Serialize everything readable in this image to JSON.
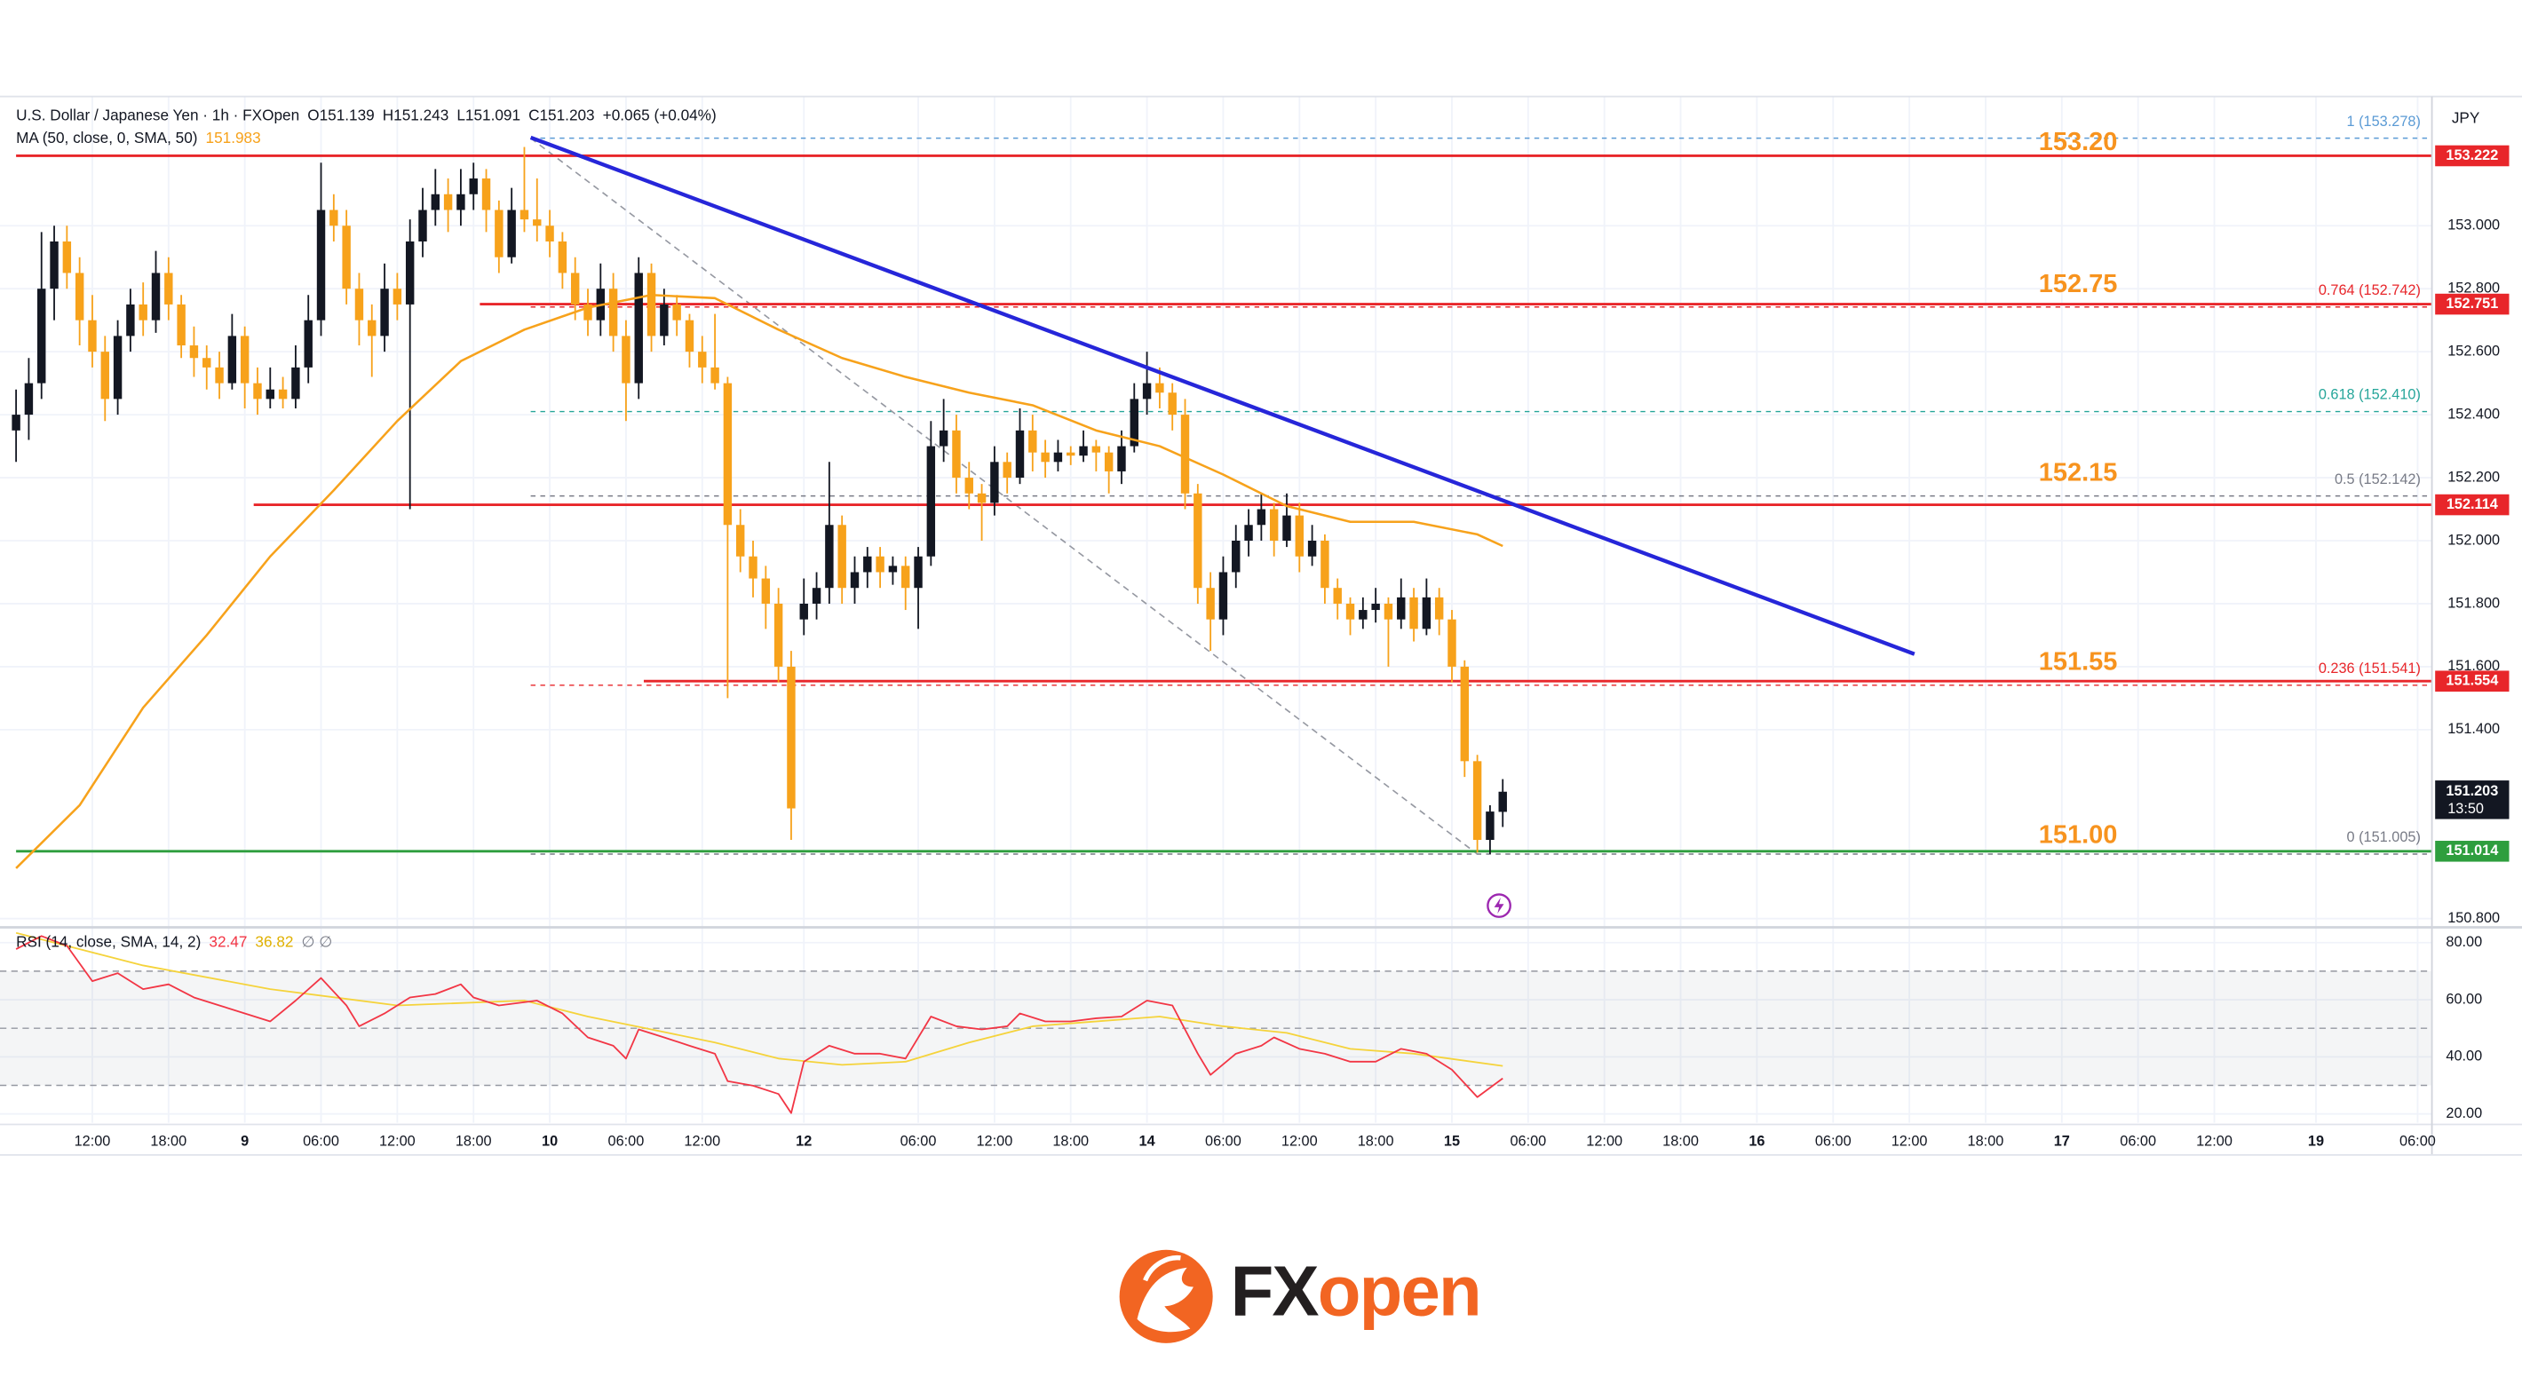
{
  "chart_data": {
    "type": "candlestick",
    "title": "U.S. Dollar / Japanese Yen · 1h · FXOpen",
    "ohlc_text": [
      "O151.139",
      "H151.243",
      "L151.091",
      "C151.203",
      "+0.065 (+0.04%)"
    ],
    "currency": "JPY",
    "up_color": "#131722",
    "down_color": "#f7a21b",
    "candles": [
      [
        152.35,
        152.48,
        152.25,
        152.4
      ],
      [
        152.4,
        152.58,
        152.32,
        152.5
      ],
      [
        152.5,
        152.98,
        152.45,
        152.8
      ],
      [
        152.8,
        153.0,
        152.7,
        152.95
      ],
      [
        152.95,
        153.0,
        152.8,
        152.85
      ],
      [
        152.85,
        152.9,
        152.62,
        152.7
      ],
      [
        152.7,
        152.78,
        152.55,
        152.6
      ],
      [
        152.6,
        152.65,
        152.38,
        152.45
      ],
      [
        152.45,
        152.7,
        152.4,
        152.65
      ],
      [
        152.65,
        152.8,
        152.6,
        152.75
      ],
      [
        152.75,
        152.82,
        152.65,
        152.7
      ],
      [
        152.7,
        152.92,
        152.66,
        152.85
      ],
      [
        152.85,
        152.9,
        152.7,
        152.75
      ],
      [
        152.75,
        152.78,
        152.58,
        152.62
      ],
      [
        152.62,
        152.68,
        152.52,
        152.58
      ],
      [
        152.58,
        152.62,
        152.48,
        152.55
      ],
      [
        152.55,
        152.6,
        152.45,
        152.5
      ],
      [
        152.5,
        152.72,
        152.48,
        152.65
      ],
      [
        152.65,
        152.68,
        152.42,
        152.5
      ],
      [
        152.5,
        152.55,
        152.4,
        152.45
      ],
      [
        152.45,
        152.55,
        152.42,
        152.48
      ],
      [
        152.48,
        152.52,
        152.42,
        152.45
      ],
      [
        152.45,
        152.62,
        152.42,
        152.55
      ],
      [
        152.55,
        152.78,
        152.5,
        152.7
      ],
      [
        152.7,
        153.2,
        152.65,
        153.05
      ],
      [
        153.05,
        153.1,
        152.95,
        153.0
      ],
      [
        153.0,
        153.05,
        152.75,
        152.8
      ],
      [
        152.8,
        152.85,
        152.62,
        152.7
      ],
      [
        152.7,
        152.75,
        152.52,
        152.65
      ],
      [
        152.65,
        152.88,
        152.6,
        152.8
      ],
      [
        152.8,
        152.85,
        152.7,
        152.75
      ],
      [
        152.75,
        153.02,
        152.1,
        152.95
      ],
      [
        152.95,
        153.12,
        152.9,
        153.05
      ],
      [
        153.05,
        153.18,
        153.0,
        153.1
      ],
      [
        153.1,
        153.15,
        152.98,
        153.05
      ],
      [
        153.05,
        153.18,
        153.0,
        153.1
      ],
      [
        153.1,
        153.2,
        153.05,
        153.15
      ],
      [
        153.15,
        153.18,
        152.98,
        153.05
      ],
      [
        153.05,
        153.08,
        152.85,
        152.9
      ],
      [
        152.9,
        153.12,
        152.88,
        153.05
      ],
      [
        153.05,
        153.25,
        152.98,
        153.02
      ],
      [
        153.02,
        153.15,
        152.95,
        153.0
      ],
      [
        153.0,
        153.05,
        152.9,
        152.95
      ],
      [
        152.95,
        152.98,
        152.8,
        152.85
      ],
      [
        152.85,
        152.9,
        152.7,
        152.75
      ],
      [
        152.75,
        152.8,
        152.65,
        152.7
      ],
      [
        152.7,
        152.88,
        152.65,
        152.8
      ],
      [
        152.8,
        152.85,
        152.6,
        152.65
      ],
      [
        152.65,
        152.7,
        152.38,
        152.5
      ],
      [
        152.5,
        152.9,
        152.45,
        152.85
      ],
      [
        152.85,
        152.88,
        152.6,
        152.65
      ],
      [
        152.65,
        152.8,
        152.62,
        152.75
      ],
      [
        152.75,
        152.78,
        152.65,
        152.7
      ],
      [
        152.7,
        152.72,
        152.55,
        152.6
      ],
      [
        152.6,
        152.65,
        152.5,
        152.55
      ],
      [
        152.55,
        152.72,
        152.48,
        152.5
      ],
      [
        152.5,
        152.52,
        151.5,
        152.05
      ],
      [
        152.05,
        152.1,
        151.9,
        151.95
      ],
      [
        151.95,
        152.0,
        151.82,
        151.88
      ],
      [
        151.88,
        151.92,
        151.72,
        151.8
      ],
      [
        151.8,
        151.85,
        151.55,
        151.6
      ],
      [
        151.6,
        151.65,
        151.05,
        151.15
      ],
      [
        151.75,
        151.88,
        151.7,
        151.8
      ],
      [
        151.8,
        151.9,
        151.75,
        151.85
      ],
      [
        151.85,
        152.25,
        151.8,
        152.05
      ],
      [
        152.05,
        152.08,
        151.8,
        151.85
      ],
      [
        151.85,
        151.95,
        151.8,
        151.9
      ],
      [
        151.9,
        151.98,
        151.85,
        151.95
      ],
      [
        151.95,
        151.98,
        151.85,
        151.9
      ],
      [
        151.9,
        151.95,
        151.86,
        151.92
      ],
      [
        151.92,
        151.95,
        151.78,
        151.85
      ],
      [
        151.85,
        151.98,
        151.72,
        151.95
      ],
      [
        151.95,
        152.38,
        151.92,
        152.3
      ],
      [
        152.3,
        152.45,
        152.25,
        152.35
      ],
      [
        152.35,
        152.4,
        152.15,
        152.2
      ],
      [
        152.2,
        152.25,
        152.1,
        152.15
      ],
      [
        152.15,
        152.18,
        152.0,
        152.12
      ],
      [
        152.12,
        152.3,
        152.08,
        152.25
      ],
      [
        152.25,
        152.28,
        152.15,
        152.2
      ],
      [
        152.2,
        152.42,
        152.18,
        152.35
      ],
      [
        152.35,
        152.4,
        152.22,
        152.28
      ],
      [
        152.28,
        152.32,
        152.2,
        152.25
      ],
      [
        152.25,
        152.32,
        152.22,
        152.28
      ],
      [
        152.28,
        152.3,
        152.24,
        152.27
      ],
      [
        152.27,
        152.35,
        152.25,
        152.3
      ],
      [
        152.3,
        152.32,
        152.22,
        152.28
      ],
      [
        152.28,
        152.3,
        152.15,
        152.22
      ],
      [
        152.22,
        152.35,
        152.18,
        152.3
      ],
      [
        152.3,
        152.5,
        152.28,
        152.45
      ],
      [
        152.45,
        152.6,
        152.4,
        152.5
      ],
      [
        152.5,
        152.55,
        152.42,
        152.47
      ],
      [
        152.47,
        152.5,
        152.35,
        152.4
      ],
      [
        152.4,
        152.45,
        152.1,
        152.15
      ],
      [
        152.15,
        152.18,
        151.8,
        151.85
      ],
      [
        151.85,
        151.9,
        151.65,
        151.75
      ],
      [
        151.75,
        151.95,
        151.7,
        151.9
      ],
      [
        151.9,
        152.05,
        151.85,
        152.0
      ],
      [
        152.0,
        152.1,
        151.95,
        152.05
      ],
      [
        152.05,
        152.15,
        152.0,
        152.1
      ],
      [
        152.1,
        152.12,
        151.95,
        152.0
      ],
      [
        152.0,
        152.15,
        151.98,
        152.08
      ],
      [
        152.08,
        152.12,
        151.9,
        151.95
      ],
      [
        151.95,
        152.05,
        151.92,
        152.0
      ],
      [
        152.0,
        152.02,
        151.8,
        151.85
      ],
      [
        151.85,
        151.88,
        151.75,
        151.8
      ],
      [
        151.8,
        151.82,
        151.7,
        151.75
      ],
      [
        151.75,
        151.82,
        151.72,
        151.78
      ],
      [
        151.78,
        151.85,
        151.74,
        151.8
      ],
      [
        151.8,
        151.82,
        151.6,
        151.75
      ],
      [
        151.75,
        151.88,
        151.72,
        151.82
      ],
      [
        151.82,
        151.85,
        151.68,
        151.72
      ],
      [
        151.72,
        151.88,
        151.7,
        151.82
      ],
      [
        151.82,
        151.85,
        151.7,
        151.75
      ],
      [
        151.75,
        151.78,
        151.55,
        151.6
      ],
      [
        151.6,
        151.62,
        151.25,
        151.3
      ],
      [
        151.3,
        151.32,
        151.01,
        151.05
      ],
      [
        151.05,
        151.16,
        151.005,
        151.14
      ],
      [
        151.139,
        151.243,
        151.091,
        151.203
      ]
    ],
    "countdown": "13:50",
    "ylim": [
      150.78,
      153.4
    ],
    "yticks": [
      {
        "value": 153,
        "label": "153.000"
      },
      {
        "value": 152.8,
        "label": "152.800"
      },
      {
        "value": 152.6,
        "label": "152.600"
      },
      {
        "value": 152.4,
        "label": "152.400"
      },
      {
        "value": 152.2,
        "label": "152.200"
      },
      {
        "value": 152,
        "label": "152.000"
      },
      {
        "value": 151.8,
        "label": "151.800"
      },
      {
        "value": 151.6,
        "label": "151.600"
      },
      {
        "value": 151.4,
        "label": "151.400"
      },
      {
        "value": 150.8,
        "label": "150.800"
      }
    ],
    "xticks": [
      {
        "value": 6,
        "label": "12:00"
      },
      {
        "value": 12,
        "label": "18:00"
      },
      {
        "value": 18,
        "label": "9"
      },
      {
        "value": 24,
        "label": "06:00"
      },
      {
        "value": 30,
        "label": "12:00"
      },
      {
        "value": 36,
        "label": "18:00"
      },
      {
        "value": 42,
        "label": "10"
      },
      {
        "value": 48,
        "label": "06:00"
      },
      {
        "value": 54,
        "label": "12:00"
      },
      {
        "value": 62,
        "label": "12"
      },
      {
        "value": 71,
        "label": "06:00"
      },
      {
        "value": 77,
        "label": "12:00"
      },
      {
        "value": 83,
        "label": "18:00"
      },
      {
        "value": 89,
        "label": "14"
      },
      {
        "value": 95,
        "label": "06:00"
      },
      {
        "value": 101,
        "label": "12:00"
      },
      {
        "value": 107,
        "label": "18:00"
      },
      {
        "value": 113,
        "label": "15"
      },
      {
        "value": 119,
        "label": "06:00"
      },
      {
        "value": 125,
        "label": "12:00"
      },
      {
        "value": 131,
        "label": "18:00"
      },
      {
        "value": 137,
        "label": "16"
      },
      {
        "value": 143,
        "label": "06:00"
      },
      {
        "value": 149,
        "label": "12:00"
      },
      {
        "value": 155,
        "label": "18:00"
      },
      {
        "value": 161,
        "label": "17"
      },
      {
        "value": 167,
        "label": "06:00"
      },
      {
        "value": 173,
        "label": "12:00"
      },
      {
        "value": 181,
        "label": "19"
      },
      {
        "value": 189,
        "label": "06:00"
      }
    ],
    "grid": true,
    "ma": {
      "name": "MA (50, close, 0, SMA, 50)",
      "color": "#f7a21b",
      "x": [
        0,
        5,
        10,
        15,
        20,
        25,
        30,
        35,
        40,
        45,
        50,
        55,
        60,
        65,
        70,
        75,
        80,
        85,
        90,
        95,
        100,
        105,
        110,
        115,
        117
      ],
      "values": [
        150.96,
        151.16,
        151.47,
        151.7,
        151.95,
        152.16,
        152.38,
        152.57,
        152.67,
        152.74,
        152.78,
        152.77,
        152.67,
        152.58,
        152.52,
        152.47,
        152.43,
        152.35,
        152.3,
        152.21,
        152.11,
        152.06,
        152.06,
        152.02,
        151.983
      ]
    },
    "trendline": {
      "x": [
        40.5,
        149.4
      ],
      "y": [
        153.28,
        151.64
      ],
      "color": "#2626d9"
    },
    "hlines": [
      {
        "price": 153.222,
        "from": 0,
        "color": "#e8262a"
      },
      {
        "price": 152.751,
        "from": 36.5,
        "color": "#e8262a"
      },
      {
        "price": 152.114,
        "from": 18.7,
        "color": "#e8262a"
      },
      {
        "price": 151.554,
        "from": 49.4,
        "color": "#e8262a"
      },
      {
        "price": 151.014,
        "from": 0,
        "color": "#2e9e3e"
      }
    ],
    "annotations": [
      {
        "value": 153.2,
        "label": "153.20"
      },
      {
        "value": 152.75,
        "label": "152.75"
      },
      {
        "value": 152.15,
        "label": "152.15"
      },
      {
        "value": 151.55,
        "label": "151.55"
      },
      {
        "value": 151,
        "label": "151.00"
      }
    ],
    "annotation_color": "#f7931e",
    "fib": {
      "from": 40.5,
      "to": 115,
      "levels": [
        {
          "price": 153.278,
          "label": "1 (153.278)",
          "color": "#5b9bd5"
        },
        {
          "price": 152.742,
          "label": "0.764 (152.742)",
          "color": "#e8262a"
        },
        {
          "price": 152.41,
          "label": "0.618 (152.410)",
          "color": "#26a69a"
        },
        {
          "price": 152.142,
          "label": "0.5 (152.142)",
          "color": "#787b86"
        },
        {
          "price": 151.541,
          "label": "0.236 (151.541)",
          "color": "#e8262a"
        },
        {
          "price": 151.005,
          "label": "0 (151.005)",
          "color": "#787b86"
        }
      ]
    },
    "rsi": {
      "name": "RSI (14, close, SMA, 14, 2)",
      "extra": "∅ ∅",
      "color": "#f23645",
      "ma_color": "#f5d33b",
      "ylim": [
        16.9,
        84.5
      ],
      "yticks": [
        {
          "value": 80,
          "label": "80.00"
        },
        {
          "value": 60,
          "label": "60.00"
        },
        {
          "value": 40,
          "label": "40.00"
        },
        {
          "value": 20,
          "label": "20.00"
        }
      ],
      "levels": [
        70,
        50,
        30
      ],
      "x": [
        0,
        2,
        4,
        6,
        8,
        10,
        12,
        14,
        16,
        18,
        20,
        22,
        24,
        26,
        27,
        29,
        31,
        33,
        35,
        36,
        38,
        41,
        43,
        45,
        47,
        48,
        49,
        51,
        53,
        55,
        56,
        58,
        60,
        61,
        62,
        64,
        66,
        68,
        70,
        72,
        74,
        76,
        78,
        79,
        81,
        83,
        85,
        87,
        89,
        91,
        93,
        94,
        96,
        98,
        99,
        101,
        103,
        105,
        107,
        109,
        111,
        113,
        115,
        117
      ],
      "values": [
        77.7,
        82.3,
        78.9,
        66.5,
        69.3,
        63.7,
        65.4,
        60.8,
        58,
        55.2,
        52.4,
        59.7,
        67.6,
        58,
        50.7,
        55.2,
        60.8,
        62,
        65.4,
        60.8,
        58,
        59.7,
        55.2,
        46.8,
        43.9,
        39.4,
        49.6,
        46.8,
        43.9,
        41.1,
        31.5,
        29.9,
        27,
        20.3,
        38.3,
        43.9,
        41.1,
        41.1,
        39.4,
        54.1,
        50.7,
        49.6,
        50.7,
        55.2,
        52.4,
        52.4,
        53.5,
        54.1,
        59.7,
        58,
        41.1,
        33.7,
        41.1,
        43.9,
        46.8,
        42.8,
        41.1,
        38.3,
        38.3,
        42.8,
        41.1,
        35.5,
        25.9,
        32.47
      ],
      "ma_x": [
        0,
        10,
        20,
        30,
        40,
        45,
        50,
        55,
        60,
        65,
        70,
        75,
        80,
        90,
        95,
        100,
        105,
        110,
        117
      ],
      "ma_values": [
        83.4,
        72,
        63.7,
        58,
        59.7,
        54.1,
        49.6,
        45,
        39.4,
        37.2,
        38.3,
        45,
        50.7,
        54.1,
        50.7,
        48.4,
        42.8,
        41.1,
        36.82
      ]
    },
    "brand": [
      "FX",
      "open"
    ]
  }
}
